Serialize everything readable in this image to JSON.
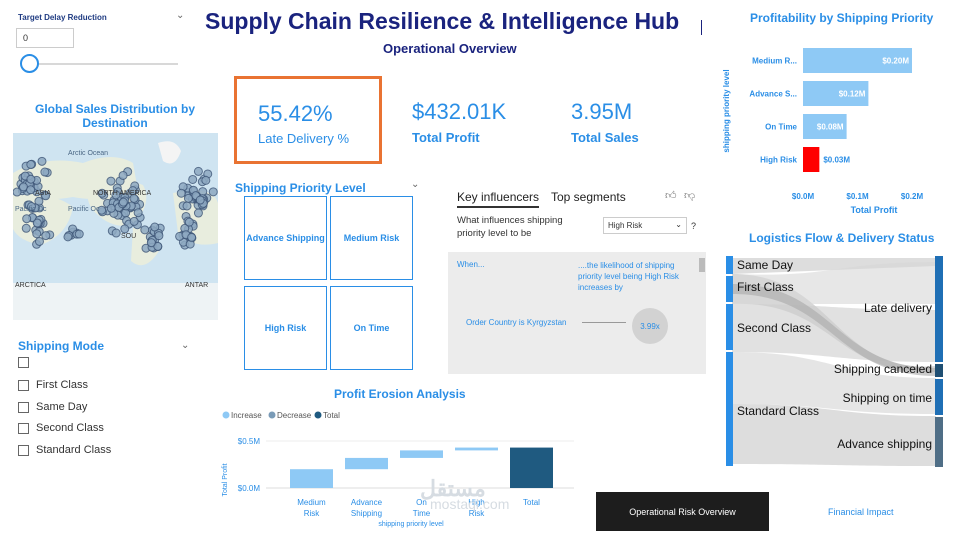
{
  "slicer": {
    "label": "Target Delay Reduction",
    "value": "0",
    "slider_fraction": 0
  },
  "header": {
    "title": "Supply Chain Resilience & Intelligence Hub",
    "subtitle": "Operational Overview"
  },
  "map": {
    "title": "Global Sales Distribution by Destination",
    "labels": {
      "arctic_ocean": "Arctic Ocean",
      "asia": "ASIA",
      "north_america": "NORTH AMERICA",
      "pacific_oc_1": "Pacific Oc",
      "pacific_oc_2": "Pacific Oc",
      "south": "SOU",
      "arctica": "ARCTICA",
      "antarctica": "ANTAR"
    }
  },
  "kpis": [
    {
      "value": "55.42%",
      "label": "Late Delivery %"
    },
    {
      "value": "$432.01K",
      "label": "Total Profit"
    },
    {
      "value": "3.95M",
      "label": "Total Sales"
    }
  ],
  "shipping_priority": {
    "title": "Shipping Priority Level",
    "tiles": [
      "Advance Shipping",
      "Medium Risk",
      "High Risk",
      "On Time"
    ]
  },
  "key_influencers": {
    "tabs": [
      "Key influencers",
      "Top segments"
    ],
    "question": "What influences shipping priority level to be",
    "selected": "High Risk",
    "help": "?",
    "col_when": "When...",
    "col_likelihood": "....the likelihood of shipping priority level being High Risk increases by",
    "factor": "Order Country is Kyrgyzstan",
    "factor_value": "3.99x"
  },
  "shipping_mode": {
    "title": "Shipping Mode",
    "options": [
      "",
      "First Class",
      "Same Day",
      "Second Class",
      "Standard Class"
    ]
  },
  "profit_erosion": {
    "title": "Profit Erosion Analysis",
    "legend": [
      "Increase",
      "Decrease",
      "Total"
    ],
    "ylabel": "Total Profit",
    "yticks": [
      "$0.5M",
      "$0.0M"
    ],
    "xlabel": "shipping priority level"
  },
  "profitability": {
    "title": "Profitability by Shipping Priority",
    "ylabel": "shipping priority level",
    "xlabel": "Total Profit",
    "xticks": [
      "$0.0M",
      "$0.1M",
      "$0.2M"
    ]
  },
  "logistics": {
    "title": "Logistics Flow & Delivery Status",
    "sources": [
      "Same Day",
      "First Class",
      "Second Class",
      "Standard Class"
    ],
    "targets": [
      "Late delivery",
      "Shipping canceled",
      "Shipping on time",
      "Advance shipping"
    ]
  },
  "nav": {
    "button": "Operational Risk Overview",
    "link": "Financial Impact"
  },
  "watermark": {
    "arabic": "مستقل",
    "latin": "mostaql.com"
  },
  "colors": {
    "accent": "#2a8ee6",
    "navy": "#1a237e",
    "bar": "#8ec9f5",
    "highlight": "#ff0000",
    "waterfall_inc": "#8ec9f5",
    "waterfall_total": "#1f5a80"
  },
  "chart_data": [
    {
      "type": "bar",
      "title": "Profitability by Shipping Priority",
      "orientation": "horizontal",
      "categories": [
        "Medium R...",
        "Advance S...",
        "On Time",
        "High Risk"
      ],
      "values": [
        0.2,
        0.12,
        0.08,
        0.03
      ],
      "data_labels": [
        "$0.20M",
        "$0.12M",
        "$0.08M",
        "$0.03M"
      ],
      "xlabel": "Total Profit",
      "ylabel": "shipping priority level",
      "xlim": [
        0,
        0.2
      ],
      "highlight_color": "#ff0000"
    },
    {
      "type": "bar",
      "title": "Profit Erosion Analysis",
      "subtype": "waterfall",
      "categories": [
        "Medium Risk",
        "Advance Shipping",
        "On Time",
        "High Risk",
        "Total"
      ],
      "values": [
        0.2,
        0.12,
        0.08,
        0.03,
        0.43
      ],
      "kinds": [
        "increase",
        "increase",
        "increase",
        "increase",
        "total"
      ],
      "xlabel": "shipping priority level",
      "ylabel": "Total Profit",
      "ylim": [
        0,
        0.5
      ]
    }
  ]
}
